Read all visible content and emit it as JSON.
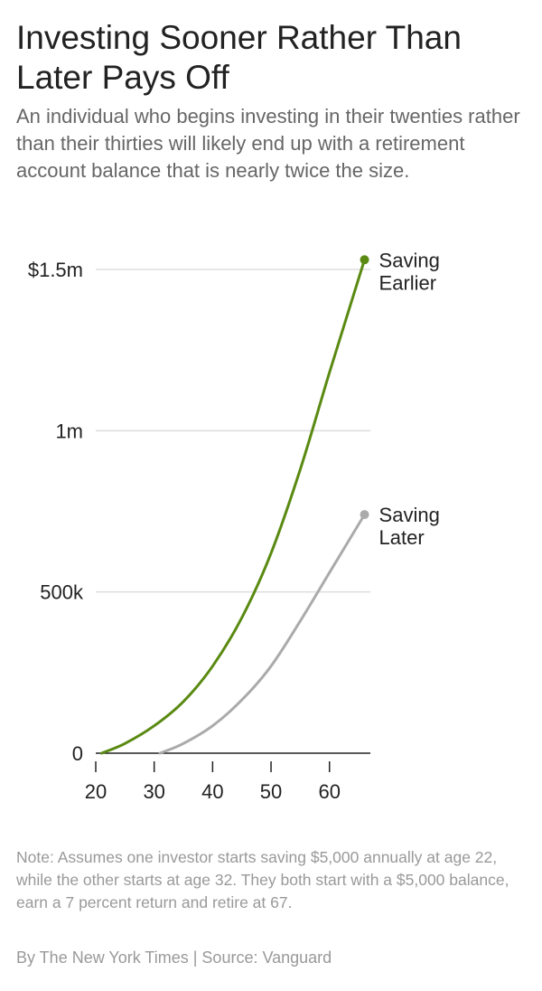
{
  "header": {
    "title": "Investing Sooner Rather Than Later Pays Off",
    "subtitle": "An individual who begins investing in their twenties rather than their thirties will likely end up with a retirement account balance that is nearly twice the size."
  },
  "footer": {
    "note": "Note: Assumes one investor starts saving $5,000 annually at age 22, while the other starts at age 32. They both start with a $5,000 balance, earn a 7 percent return and retire at 67.",
    "credit": "By The New York Times | Source: Vanguard"
  },
  "chart_data": {
    "type": "line",
    "xlim": [
      20,
      67
    ],
    "ylim": [
      0,
      1500000
    ],
    "grid": true,
    "x_ticks": [
      {
        "value": 20,
        "label": "20"
      },
      {
        "value": 30,
        "label": "30"
      },
      {
        "value": 40,
        "label": "40"
      },
      {
        "value": 50,
        "label": "50"
      },
      {
        "value": 60,
        "label": "60"
      }
    ],
    "y_ticks": [
      {
        "value": 0,
        "label": "0"
      },
      {
        "value": 500000,
        "label": "500k"
      },
      {
        "value": 1000000,
        "label": "1m"
      },
      {
        "value": 1500000,
        "label": "$1.5m"
      }
    ],
    "series": [
      {
        "name": "Saving Earlier",
        "label_lines": [
          "Saving",
          "Earlier"
        ],
        "color": "#5a8a12",
        "x": [
          21,
          25,
          30,
          35,
          40,
          45,
          50,
          55,
          60,
          66
        ],
        "values": [
          0,
          30000,
          85000,
          160000,
          270000,
          420000,
          620000,
          880000,
          1180000,
          1530000
        ]
      },
      {
        "name": "Saving Later",
        "label_lines": [
          "Saving",
          "Later"
        ],
        "color": "#aaaaaa",
        "x": [
          31,
          35,
          40,
          45,
          50,
          55,
          60,
          66
        ],
        "values": [
          0,
          30000,
          85000,
          165000,
          270000,
          410000,
          560000,
          740000
        ]
      }
    ]
  }
}
